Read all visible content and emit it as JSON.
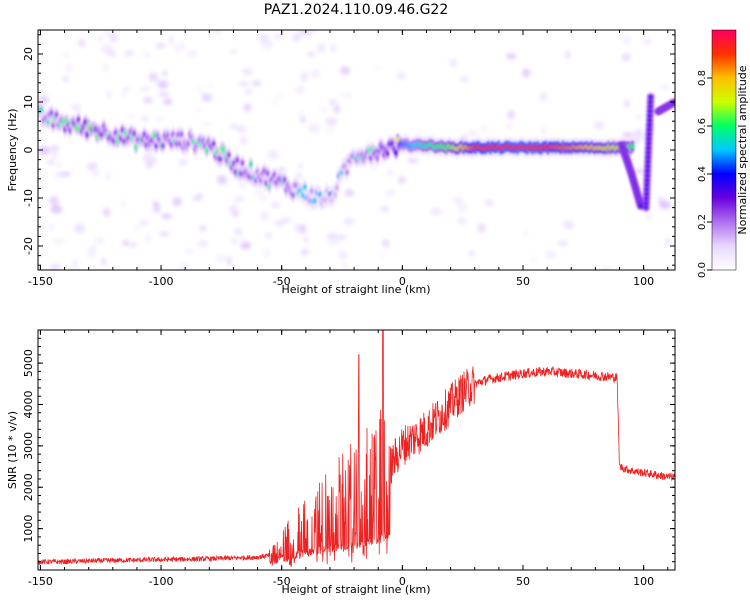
{
  "title": "PAZ1.2024.110.09.46.G22",
  "chart_data": [
    {
      "type": "heatmap",
      "xlabel": "Height of straight line (km)",
      "ylabel": "Frequency (Hz)",
      "xlim": [
        -151,
        113
      ],
      "ylim": [
        -25,
        25
      ],
      "xticks": [
        -150,
        -100,
        -50,
        0,
        50,
        100
      ],
      "yticks": [
        -20,
        -10,
        0,
        10,
        20
      ],
      "colorbar": {
        "label": "Normalized spectral amplitude",
        "range": [
          0,
          1
        ],
        "ticks": [
          0.0,
          0.2,
          0.4,
          0.6,
          0.8
        ],
        "colors": [
          "#ffffff",
          "#e8d8ff",
          "#b070f0",
          "#6a00e0",
          "#0000ff",
          "#00c8ff",
          "#00ff66",
          "#ccff00",
          "#ffc000",
          "#ff3000",
          "#ff0060"
        ]
      },
      "ridge": {
        "x": [
          -150,
          -140,
          -130,
          -120,
          -110,
          -100,
          -90,
          -80,
          -70,
          -60,
          -50,
          -40,
          -35,
          -30,
          -20,
          -10,
          0,
          10,
          20,
          30,
          50,
          70,
          90,
          95
        ],
        "y": [
          7,
          5.5,
          4.5,
          3.5,
          2,
          2,
          2,
          1,
          -3,
          -5,
          -7,
          -9,
          -10,
          -10,
          -1,
          0,
          1,
          1,
          0.5,
          0.5,
          0.5,
          0.5,
          0.5,
          0.5
        ],
        "amplitude": [
          0.25,
          0.3,
          0.35,
          0.3,
          0.3,
          0.3,
          0.25,
          0.3,
          0.3,
          0.25,
          0.3,
          0.2,
          0.2,
          0.15,
          0.25,
          0.3,
          0.45,
          0.55,
          0.65,
          0.9,
          0.95,
          0.85,
          0.7,
          0.6
        ]
      },
      "right_branches": [
        {
          "x": [
            91,
            95,
            99
          ],
          "y": [
            1,
            -5,
            -12
          ]
        },
        {
          "x": [
            101,
            103
          ],
          "y": [
            -12,
            12
          ]
        },
        {
          "x": [
            106,
            113
          ],
          "y": [
            8,
            10
          ]
        }
      ]
    },
    {
      "type": "line",
      "xlabel": "Height of straight line (km)",
      "ylabel": "SNR (10 * v/v)",
      "xlim": [
        -151,
        113
      ],
      "ylim": [
        0,
        5800
      ],
      "xticks": [
        -150,
        -100,
        -50,
        0,
        50,
        100
      ],
      "yticks": [
        1000,
        2000,
        3000,
        4000,
        5000
      ],
      "series": [
        {
          "color": "#ee2222",
          "x": [
            -150,
            -140,
            -130,
            -120,
            -110,
            -100,
            -90,
            -80,
            -70,
            -60,
            -55,
            -50,
            -45,
            -40,
            -35,
            -30,
            -25,
            -20,
            -15,
            -10,
            -5,
            0,
            5,
            10,
            15,
            20,
            25,
            30,
            35,
            40,
            50,
            60,
            70,
            80,
            89,
            90,
            92,
            95,
            100,
            105,
            110,
            113
          ],
          "values": [
            200,
            200,
            220,
            230,
            240,
            250,
            260,
            270,
            290,
            310,
            350,
            500,
            800,
            1000,
            1200,
            1400,
            1500,
            1700,
            1800,
            2000,
            2500,
            3000,
            3200,
            3400,
            3700,
            4000,
            4300,
            4500,
            4600,
            4650,
            4750,
            4800,
            4750,
            4700,
            4650,
            2500,
            2450,
            2400,
            2350,
            2300,
            2250,
            2250
          ],
          "spikes": [
            {
              "x": -18,
              "y": 5200
            },
            {
              "x": -8,
              "y": 5800
            }
          ]
        }
      ]
    }
  ]
}
